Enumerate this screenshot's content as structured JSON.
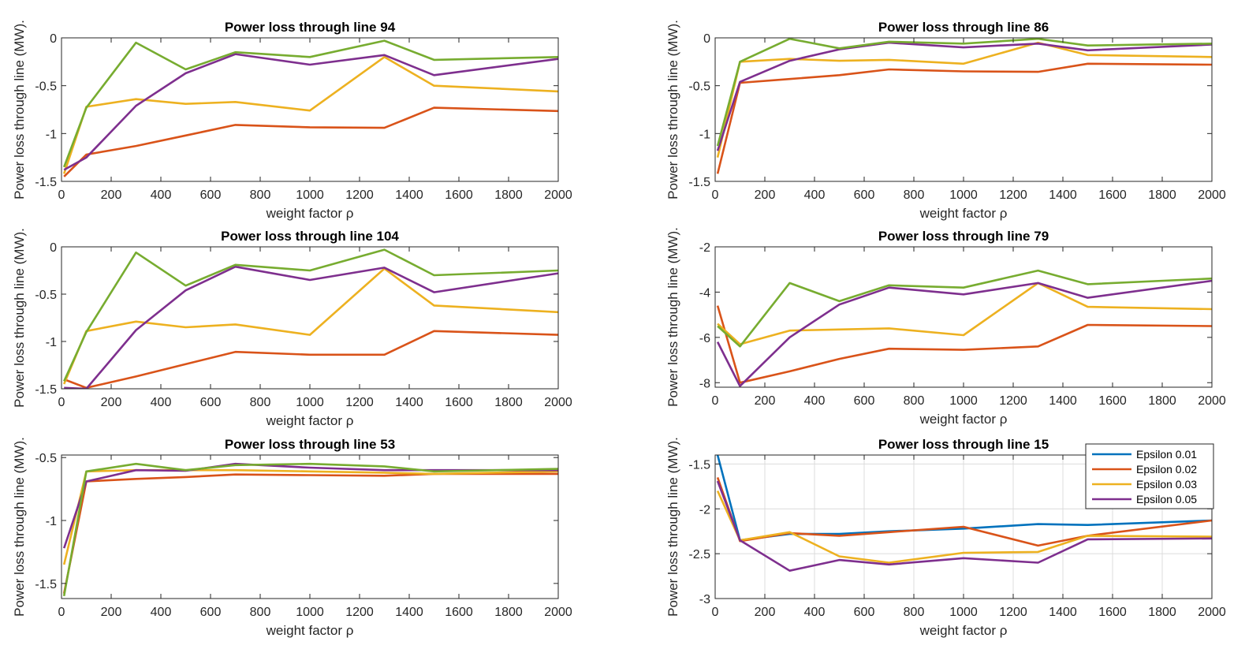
{
  "colors": {
    "Epsilon 0.01": "#0072BD",
    "Epsilon 0.02": "#D95319",
    "Epsilon 0.03": "#EDB120",
    "Epsilon 0.05": "#7E2F8E",
    "unlabeled": "#77AC30",
    "axis": "#262626",
    "grid": "#dcdcdc"
  },
  "chart_data": [
    {
      "type": "line",
      "title": "Power loss through line 94",
      "xlabel": "weight factor ρ",
      "ylabel": "Power loss through line (MW).",
      "xlim": [
        0,
        2000
      ],
      "ylim": [
        -1.5,
        0
      ],
      "xticks": [
        0,
        200,
        400,
        600,
        800,
        1000,
        1200,
        1400,
        1600,
        1800,
        2000
      ],
      "yticks": [
        0,
        -0.5,
        -1,
        -1.5
      ],
      "ytick_labels": [
        "0",
        "-0.5",
        "-1",
        "-1.5"
      ],
      "grid": false,
      "x": [
        10,
        100,
        300,
        500,
        700,
        1000,
        1300,
        1500,
        2000
      ],
      "series": [
        {
          "name": "Epsilon 0.02",
          "values": [
            -1.45,
            -1.22,
            -1.13,
            -1.02,
            -0.91,
            -0.935,
            -0.94,
            -0.73,
            -0.765
          ]
        },
        {
          "name": "Epsilon 0.03",
          "values": [
            -1.42,
            -0.72,
            -0.64,
            -0.69,
            -0.67,
            -0.76,
            -0.2,
            -0.5,
            -0.56
          ]
        },
        {
          "name": "Epsilon 0.05",
          "values": [
            -1.38,
            -1.25,
            -0.71,
            -0.37,
            -0.17,
            -0.28,
            -0.18,
            -0.39,
            -0.22
          ]
        },
        {
          "name": "",
          "values": [
            -1.35,
            -0.73,
            -0.05,
            -0.33,
            -0.15,
            -0.2,
            -0.03,
            -0.23,
            -0.2
          ]
        }
      ]
    },
    {
      "type": "line",
      "title": "Power loss through line 86",
      "xlabel": "weight factor ρ",
      "ylabel": "Power loss through line (MW).",
      "xlim": [
        0,
        2000
      ],
      "ylim": [
        -1.5,
        0
      ],
      "xticks": [
        0,
        200,
        400,
        600,
        800,
        1000,
        1200,
        1400,
        1600,
        1800,
        2000
      ],
      "yticks": [
        0,
        -0.5,
        -1,
        -1.5
      ],
      "ytick_labels": [
        "0",
        "-0.5",
        "-1",
        "-1.5"
      ],
      "grid": false,
      "x": [
        10,
        100,
        300,
        500,
        700,
        1000,
        1300,
        1500,
        2000
      ],
      "series": [
        {
          "name": "Epsilon 0.02",
          "values": [
            -1.42,
            -0.47,
            -0.43,
            -0.39,
            -0.33,
            -0.35,
            -0.355,
            -0.27,
            -0.28
          ]
        },
        {
          "name": "Epsilon 0.03",
          "values": [
            -1.25,
            -0.25,
            -0.22,
            -0.24,
            -0.23,
            -0.27,
            -0.05,
            -0.18,
            -0.2
          ]
        },
        {
          "name": "Epsilon 0.05",
          "values": [
            -1.18,
            -0.46,
            -0.24,
            -0.12,
            -0.05,
            -0.1,
            -0.06,
            -0.13,
            -0.07
          ]
        },
        {
          "name": "",
          "values": [
            -1.13,
            -0.25,
            -0.01,
            -0.11,
            -0.04,
            -0.06,
            -0.01,
            -0.08,
            -0.06
          ]
        }
      ]
    },
    {
      "type": "line",
      "title": "Power loss through line 104",
      "xlabel": "weight factor ρ",
      "ylabel": "Power loss through line (MW).",
      "xlim": [
        0,
        2000
      ],
      "ylim": [
        -1.5,
        0
      ],
      "xticks": [
        0,
        200,
        400,
        600,
        800,
        1000,
        1200,
        1400,
        1600,
        1800,
        2000
      ],
      "yticks": [
        0,
        -0.5,
        -1,
        -1.5
      ],
      "ytick_labels": [
        "0",
        "-0.5",
        "-1",
        "-1.5"
      ],
      "grid": false,
      "x": [
        10,
        100,
        300,
        500,
        700,
        1000,
        1300,
        1500,
        2000
      ],
      "series": [
        {
          "name": "Epsilon 0.02",
          "values": [
            -1.4,
            -1.49,
            -1.37,
            -1.24,
            -1.11,
            -1.14,
            -1.14,
            -0.89,
            -0.93
          ]
        },
        {
          "name": "Epsilon 0.03",
          "values": [
            -1.45,
            -0.89,
            -0.79,
            -0.85,
            -0.82,
            -0.93,
            -0.23,
            -0.62,
            -0.69
          ]
        },
        {
          "name": "Epsilon 0.05",
          "values": [
            -1.49,
            -1.5,
            -0.88,
            -0.46,
            -0.21,
            -0.35,
            -0.22,
            -0.48,
            -0.28
          ]
        },
        {
          "name": "",
          "values": [
            -1.42,
            -0.9,
            -0.06,
            -0.41,
            -0.19,
            -0.25,
            -0.03,
            -0.3,
            -0.25
          ]
        }
      ]
    },
    {
      "type": "line",
      "title": "Power loss through line 79",
      "xlabel": "weight factor ρ",
      "ylabel": "Power loss through line (MW).",
      "xlim": [
        0,
        2000
      ],
      "ylim": [
        -8.2,
        -2
      ],
      "xticks": [
        0,
        200,
        400,
        600,
        800,
        1000,
        1200,
        1400,
        1600,
        1800,
        2000
      ],
      "yticks": [
        -2,
        -4,
        -6,
        -8
      ],
      "ytick_labels": [
        "-2",
        "-4",
        "-6",
        "-8"
      ],
      "grid": false,
      "x": [
        10,
        100,
        300,
        500,
        700,
        1000,
        1300,
        1500,
        2000
      ],
      "series": [
        {
          "name": "Epsilon 0.02",
          "values": [
            -4.6,
            -8.0,
            -7.5,
            -6.95,
            -6.5,
            -6.55,
            -6.4,
            -5.45,
            -5.5
          ]
        },
        {
          "name": "Epsilon 0.03",
          "values": [
            -5.4,
            -6.3,
            -5.7,
            -5.65,
            -5.6,
            -5.9,
            -3.6,
            -4.65,
            -4.75
          ]
        },
        {
          "name": "Epsilon 0.05",
          "values": [
            -6.2,
            -8.15,
            -6.0,
            -4.55,
            -3.8,
            -4.1,
            -3.6,
            -4.25,
            -3.5
          ]
        },
        {
          "name": "",
          "values": [
            -5.5,
            -6.4,
            -3.6,
            -4.4,
            -3.7,
            -3.8,
            -3.05,
            -3.65,
            -3.4
          ]
        }
      ]
    },
    {
      "type": "line",
      "title": "Power loss through line 53",
      "xlabel": "weight factor ρ",
      "ylabel": "Power loss through line (MW).",
      "xlim": [
        0,
        2000
      ],
      "ylim": [
        -1.62,
        -0.48
      ],
      "xticks": [
        0,
        200,
        400,
        600,
        800,
        1000,
        1200,
        1400,
        1600,
        1800,
        2000
      ],
      "yticks": [
        -0.5,
        -1,
        -1.5
      ],
      "ytick_labels": [
        "-0.5",
        "-1",
        "-1.5"
      ],
      "grid": false,
      "x": [
        10,
        100,
        300,
        500,
        700,
        1000,
        1300,
        1500,
        2000
      ],
      "series": [
        {
          "name": "Epsilon 0.02",
          "values": [
            -1.58,
            -0.69,
            -0.67,
            -0.655,
            -0.635,
            -0.64,
            -0.645,
            -0.63,
            -0.63
          ]
        },
        {
          "name": "Epsilon 0.03",
          "values": [
            -1.35,
            -0.61,
            -0.6,
            -0.6,
            -0.6,
            -0.61,
            -0.62,
            -0.63,
            -0.61
          ]
        },
        {
          "name": "Epsilon 0.05",
          "values": [
            -1.22,
            -0.69,
            -0.6,
            -0.605,
            -0.55,
            -0.58,
            -0.6,
            -0.6,
            -0.6
          ]
        },
        {
          "name": "",
          "values": [
            -1.6,
            -0.61,
            -0.55,
            -0.6,
            -0.56,
            -0.55,
            -0.57,
            -0.61,
            -0.59
          ]
        }
      ]
    },
    {
      "type": "line",
      "title": "Power loss through line 15",
      "xlabel": "weight factor ρ",
      "ylabel": "Power loss through line (MW).",
      "xlim": [
        0,
        2000
      ],
      "ylim": [
        -3,
        -1.4
      ],
      "xticks": [
        0,
        200,
        400,
        600,
        800,
        1000,
        1200,
        1400,
        1600,
        1800,
        2000
      ],
      "yticks": [
        -1.5,
        -2,
        -2.5,
        -3
      ],
      "ytick_labels": [
        "-1.5",
        "-2",
        "-2.5",
        "-3"
      ],
      "grid": true,
      "legend": "top-right",
      "x": [
        10,
        100,
        300,
        500,
        700,
        1000,
        1300,
        1500,
        2000
      ],
      "series": [
        {
          "name": "Epsilon 0.01",
          "values": [
            -1.4,
            -2.35,
            -2.28,
            -2.28,
            -2.25,
            -2.22,
            -2.17,
            -2.18,
            -2.13
          ]
        },
        {
          "name": "Epsilon 0.02",
          "values": [
            -1.65,
            -2.36,
            -2.27,
            -2.3,
            -2.26,
            -2.2,
            -2.41,
            -2.3,
            -2.13
          ]
        },
        {
          "name": "Epsilon 0.03",
          "values": [
            -1.8,
            -2.35,
            -2.26,
            -2.53,
            -2.6,
            -2.49,
            -2.48,
            -2.3,
            -2.31
          ]
        },
        {
          "name": "Epsilon 0.05",
          "values": [
            -1.69,
            -2.35,
            -2.69,
            -2.57,
            -2.62,
            -2.55,
            -2.6,
            -2.34,
            -2.33
          ]
        }
      ]
    }
  ]
}
